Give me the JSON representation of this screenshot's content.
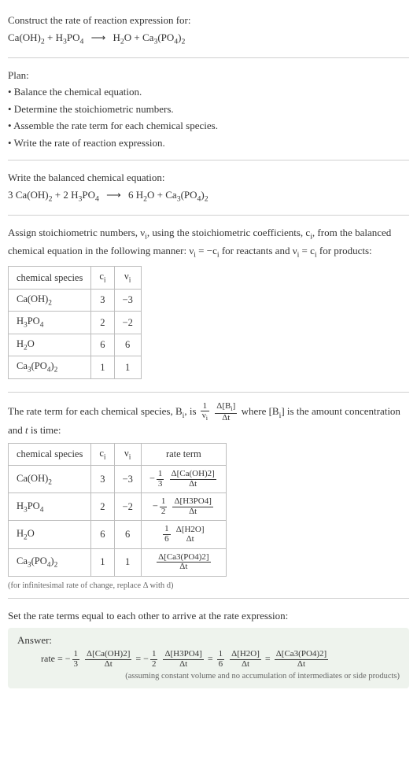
{
  "prompt": {
    "line1": "Construct the rate of reaction expression for:",
    "eq_lhs_a": "Ca(OH)",
    "eq_lhs_a_sub": "2",
    "eq_lhs_b": "H",
    "eq_lhs_b_sub": "3",
    "eq_lhs_b2": "PO",
    "eq_lhs_b2_sub": "4",
    "eq_rhs_a": "H",
    "eq_rhs_a_sub": "2",
    "eq_rhs_a2": "O",
    "eq_rhs_b": "Ca",
    "eq_rhs_b_sub": "3",
    "eq_rhs_b2": "(PO",
    "eq_rhs_b2a_sub": "4",
    "eq_rhs_b2b": ")",
    "eq_rhs_b2b_sub": "2",
    "arrow": "⟶",
    "plus": " + "
  },
  "plan": {
    "header": "Plan:",
    "b1": "• Balance the chemical equation.",
    "b2": "• Determine the stoichiometric numbers.",
    "b3": "• Assemble the rate term for each chemical species.",
    "b4": "• Write the rate of reaction expression."
  },
  "balanced": {
    "header": "Write the balanced chemical equation:",
    "c1": "3 ",
    "c2": "2 ",
    "c3": "6 "
  },
  "assign": {
    "text1": "Assign stoichiometric numbers, ν",
    "text1_sub": "i",
    "text2": ", using the stoichiometric coefficients, c",
    "text2_sub": "i",
    "text3": ", from the balanced chemical equation in the following manner: ν",
    "text3_sub": "i",
    "text4": " = −c",
    "text4_sub": "i",
    "text5": " for reactants and ν",
    "text5_sub": "i",
    "text6": " = c",
    "text6_sub": "i",
    "text7": " for products:"
  },
  "table1": {
    "h1": "chemical species",
    "h2": "c",
    "h2_sub": "i",
    "h3": "ν",
    "h3_sub": "i",
    "r1c1a": "Ca(OH)",
    "r1c1a_sub": "2",
    "r1c2": "3",
    "r1c3": "−3",
    "r2c1a": "H",
    "r2c1a_sub": "3",
    "r2c1b": "PO",
    "r2c1b_sub": "4",
    "r2c2": "2",
    "r2c3": "−2",
    "r3c1a": "H",
    "r3c1a_sub": "2",
    "r3c1b": "O",
    "r3c2": "6",
    "r3c3": "6",
    "r4c1a": "Ca",
    "r4c1a_sub": "3",
    "r4c1b": "(PO",
    "r4c1b_sub": "4",
    "r4c1c": ")",
    "r4c1c_sub": "2",
    "r4c2": "1",
    "r4c3": "1"
  },
  "rateterm": {
    "p1": "The rate term for each chemical species, B",
    "p1_sub": "i",
    "p2": ", is ",
    "f1_num": "1",
    "f1_den_a": "ν",
    "f1_den_sub": "i",
    "f2_num_a": "Δ[B",
    "f2_num_sub": "i",
    "f2_num_b": "]",
    "f2_den": "Δt",
    "p3": " where [B",
    "p3_sub": "i",
    "p4": "] is the amount concentration and ",
    "p5": "t",
    "p6": " is time:"
  },
  "table2": {
    "h1": "chemical species",
    "h2": "c",
    "h2_sub": "i",
    "h3": "ν",
    "h3_sub": "i",
    "h4": "rate term",
    "neg": "−",
    "f13_num": "1",
    "f13_den": "3",
    "f12_num": "1",
    "f12_den": "2",
    "f16_num": "1",
    "f16_den": "6",
    "dCaOH_num": "Δ[Ca(OH)2]",
    "dCaOH_den": "Δt",
    "dH3PO4_num": "Δ[H3PO4]",
    "dH3PO4_den": "Δt",
    "dH2O_num": "Δ[H2O]",
    "dH2O_den": "Δt",
    "dCa3_num": "Δ[Ca3(PO4)2]",
    "dCa3_den": "Δt"
  },
  "footnote": "(for infinitesimal rate of change, replace Δ with d)",
  "setline": "Set the rate terms equal to each other to arrive at the rate expression:",
  "answer": {
    "title": "Answer:",
    "rate": "rate = ",
    "eq": " = ",
    "note": "(assuming constant volume and no accumulation of intermediates or side products)"
  },
  "colors": {
    "hr": "#d0d0d0",
    "table_border": "#bdbdbd",
    "answer_bg": "#eef3ed"
  }
}
